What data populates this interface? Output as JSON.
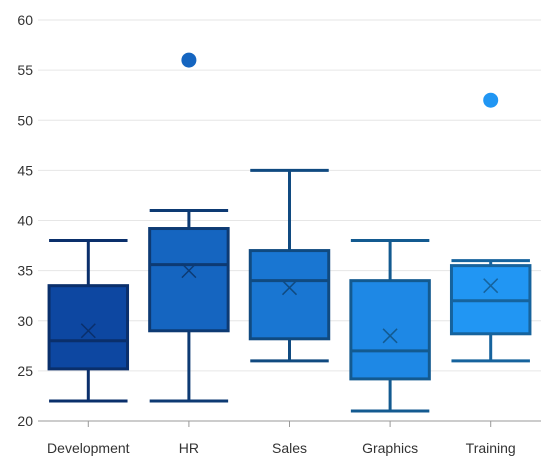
{
  "chart_data": {
    "type": "box",
    "title": "",
    "xlabel": "",
    "ylabel": "",
    "ylim": [
      20,
      60
    ],
    "y_ticks": [
      20,
      25,
      30,
      35,
      40,
      45,
      50,
      55,
      60
    ],
    "grid": true,
    "legend": "none",
    "categories": [
      "Development",
      "HR",
      "Sales",
      "Graphics",
      "Training"
    ],
    "series": [
      {
        "min": 22,
        "q1": 25.2,
        "median": 28,
        "q3": 33.5,
        "max": 38,
        "mean": 29,
        "outliers": [],
        "fill": "#0d47a1",
        "stroke": "#0a2f6b"
      },
      {
        "min": 22,
        "q1": 29,
        "median": 35.6,
        "q3": 39.2,
        "max": 41,
        "mean": 35,
        "outliers": [
          56
        ],
        "fill": "#1565c0",
        "stroke": "#0d3a73"
      },
      {
        "min": 26,
        "q1": 28.2,
        "median": 34,
        "q3": 37,
        "max": 45,
        "mean": 33.3,
        "outliers": [],
        "fill": "#1976d2",
        "stroke": "#104a80"
      },
      {
        "min": 21,
        "q1": 24.2,
        "median": 27,
        "q3": 34,
        "max": 38,
        "mean": 28.5,
        "outliers": [],
        "fill": "#1e88e5",
        "stroke": "#135a90"
      },
      {
        "min": 26,
        "q1": 28.7,
        "median": 32,
        "q3": 35.5,
        "max": 36,
        "mean": 33.5,
        "outliers": [
          52
        ],
        "fill": "#2196f3",
        "stroke": "#16639d"
      }
    ]
  }
}
